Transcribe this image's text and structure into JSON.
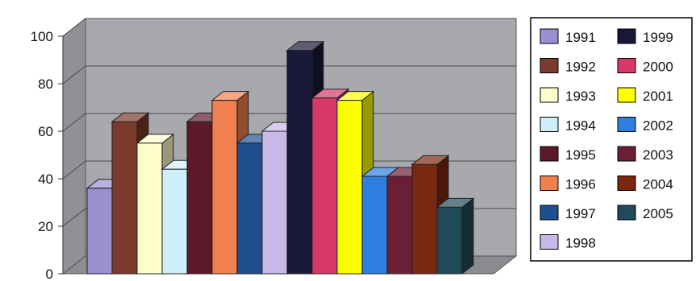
{
  "chart_data": {
    "type": "bar",
    "title": "",
    "xlabel": "",
    "ylabel": "",
    "ylim": [
      0,
      100
    ],
    "y_ticks": [
      "0",
      "20",
      "40",
      "60",
      "80",
      "100"
    ],
    "grid": true,
    "legend_position": "right",
    "style": "3d-clustered-columns",
    "categories": [
      ""
    ],
    "series": [
      {
        "name": "1991",
        "values": [
          36
        ],
        "color": "#9b8fd0"
      },
      {
        "name": "1992",
        "values": [
          64
        ],
        "color": "#7a3a2c"
      },
      {
        "name": "1993",
        "values": [
          55
        ],
        "color": "#ffffcc"
      },
      {
        "name": "1994",
        "values": [
          44
        ],
        "color": "#cdeffa"
      },
      {
        "name": "1995",
        "values": [
          64
        ],
        "color": "#5a1a2a"
      },
      {
        "name": "1996",
        "values": [
          73
        ],
        "color": "#f08050"
      },
      {
        "name": "1997",
        "values": [
          55
        ],
        "color": "#1f4f8f"
      },
      {
        "name": "1998",
        "values": [
          60
        ],
        "color": "#c8b8e8"
      },
      {
        "name": "1999",
        "values": [
          94
        ],
        "color": "#1a1838"
      },
      {
        "name": "2000",
        "values": [
          74
        ],
        "color": "#d83868"
      },
      {
        "name": "2001",
        "values": [
          73
        ],
        "color": "#ffff00"
      },
      {
        "name": "2002",
        "values": [
          41
        ],
        "color": "#2f7fe0"
      },
      {
        "name": "2003",
        "values": [
          41
        ],
        "color": "#6a1f35"
      },
      {
        "name": "2004",
        "values": [
          46
        ],
        "color": "#7a2810"
      },
      {
        "name": "2005",
        "values": [
          28
        ],
        "color": "#1f4a58"
      }
    ]
  }
}
